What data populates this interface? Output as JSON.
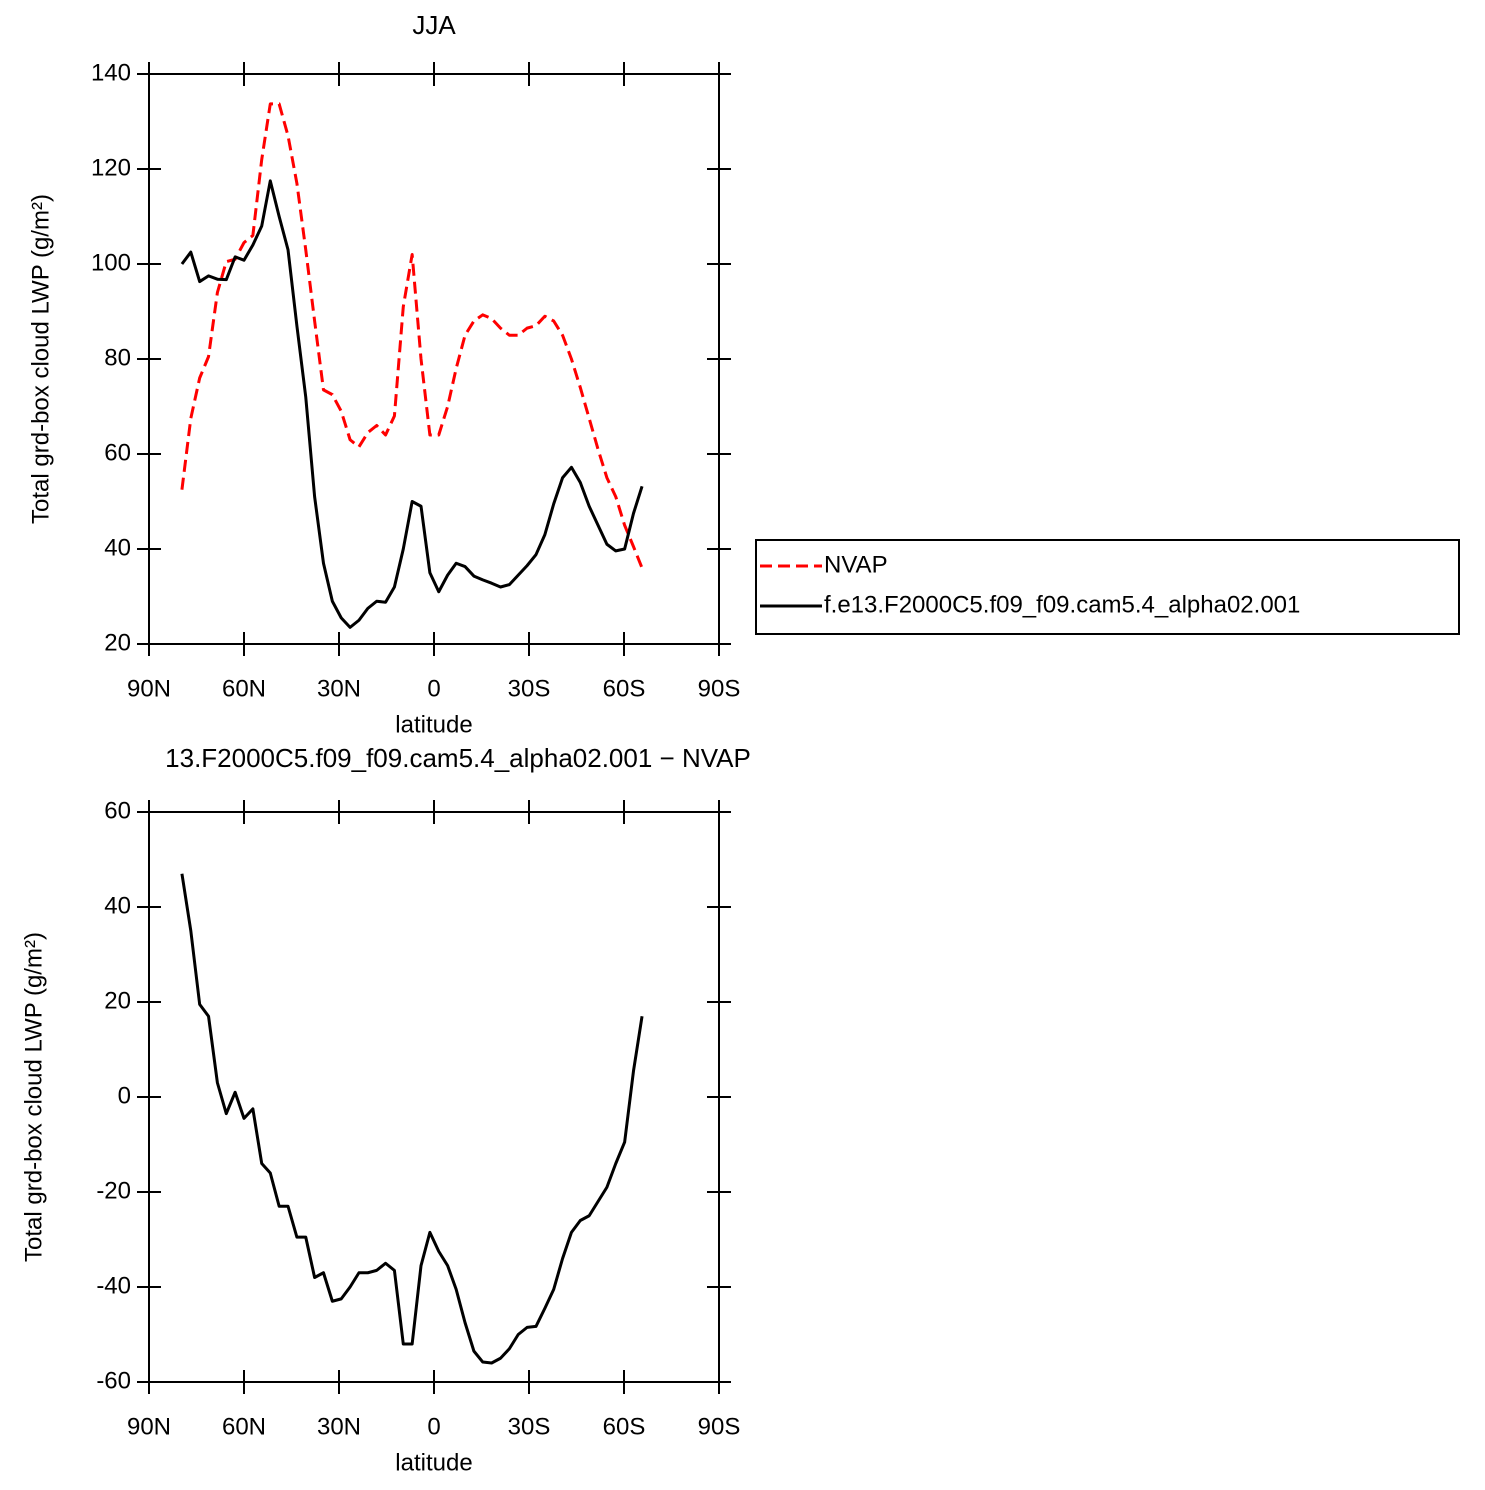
{
  "chart_data": [
    {
      "type": "line",
      "title": "JJA",
      "x_label": "latitude",
      "y_label": "Total grd-box cloud LWP (g/m²)",
      "x": [
        79.6,
        76.8,
        74.0,
        71.2,
        68.4,
        65.6,
        62.8,
        60.0,
        57.2,
        54.4,
        51.7,
        48.9,
        46.1,
        43.3,
        40.5,
        37.7,
        34.9,
        32.1,
        29.3,
        26.5,
        23.7,
        20.9,
        18.1,
        15.3,
        12.5,
        9.7,
        6.9,
        4.1,
        1.3,
        -1.5,
        -4.3,
        -7.0,
        -9.8,
        -12.6,
        -15.4,
        -18.2,
        -21.0,
        -23.8,
        -26.6,
        -29.4,
        -32.2,
        -35.0,
        -37.8,
        -40.6,
        -43.4,
        -46.2,
        -49.0,
        -51.8,
        -54.6,
        -57.4,
        -60.2,
        -63.0,
        -65.7
      ],
      "series": [
        {
          "name": "NVAP",
          "color": "#ff0000",
          "linestyle": "dashed",
          "values": [
            52.5,
            67.5,
            76,
            80.5,
            94,
            100.5,
            101,
            104.5,
            106,
            122,
            133.7,
            133.7,
            127,
            117,
            103,
            88,
            73.5,
            72.5,
            69,
            63,
            61.5,
            64.5,
            66,
            64,
            68,
            91,
            102,
            80,
            64,
            64,
            70,
            78,
            85,
            88,
            89.3,
            88.5,
            86.5,
            85,
            85,
            86.5,
            87,
            89,
            88,
            85,
            80,
            74,
            67.5,
            61,
            55,
            51,
            45,
            40.5,
            36
          ]
        },
        {
          "name": "f.e13.F2000C5.f09_f09.cam5.4_alpha02.001",
          "color": "#000000",
          "linestyle": "solid",
          "values": [
            100,
            102.5,
            96.3,
            97.5,
            96.8,
            96.7,
            101.5,
            100.8,
            104,
            108,
            117.5,
            110,
            103,
            87,
            72,
            51,
            37,
            29,
            25.5,
            23.5,
            25,
            27.5,
            29,
            28.8,
            32,
            40,
            50,
            49,
            35,
            31,
            34.5,
            37,
            36.3,
            34.3,
            33.5,
            32.8,
            32,
            32.5,
            34.5,
            36.5,
            38.8,
            43,
            49.5,
            55,
            57.2,
            54,
            49,
            45,
            41,
            39.6,
            40,
            47.5,
            53.2
          ]
        }
      ],
      "xlim": [
        90,
        -90
      ],
      "xticks": [
        {
          "value": 90,
          "label": "90N"
        },
        {
          "value": 60,
          "label": "60N"
        },
        {
          "value": 30,
          "label": "30N"
        },
        0,
        {
          "value": -30,
          "label": "30S"
        },
        {
          "value": -60,
          "label": "60S"
        },
        {
          "value": -90,
          "label": "90S"
        }
      ],
      "ylim": [
        20,
        140
      ],
      "yticks": [
        20,
        40,
        60,
        80,
        100,
        120,
        140
      ],
      "legend": "right"
    },
    {
      "type": "line",
      "title": "13.F2000C5.f09_f09.cam5.4_alpha02.001 − NVAP",
      "x_label": "latitude",
      "y_label": "Total grd-box cloud LWP (g/m²)",
      "x": [
        79.6,
        76.8,
        74.0,
        71.2,
        68.4,
        65.6,
        62.8,
        60.0,
        57.2,
        54.4,
        51.7,
        48.9,
        46.1,
        43.3,
        40.5,
        37.7,
        34.9,
        32.1,
        29.3,
        26.5,
        23.7,
        20.9,
        18.1,
        15.3,
        12.5,
        9.7,
        6.9,
        4.1,
        1.3,
        -1.5,
        -4.3,
        -7.0,
        -9.8,
        -12.6,
        -15.4,
        -18.2,
        -21.0,
        -23.8,
        -26.6,
        -29.4,
        -32.2,
        -35.0,
        -37.8,
        -40.6,
        -43.4,
        -46.2,
        -49.0,
        -51.8,
        -54.6,
        -57.4,
        -60.2,
        -63.0,
        -65.7
      ],
      "series": [
        {
          "color": "#000000",
          "linestyle": "solid",
          "values": [
            47,
            35,
            19.5,
            17,
            3,
            -3.5,
            1,
            -4.5,
            -2.5,
            -14,
            -16,
            -23,
            -23,
            -29.5,
            -29.5,
            -38,
            -37,
            -43,
            -42.5,
            -40,
            -37,
            -37,
            -36.5,
            -35,
            -36.5,
            -52,
            -52,
            -35.5,
            -28.5,
            -32.5,
            -35.5,
            -40.5,
            -47.5,
            -53.5,
            -55.8,
            -56,
            -55,
            -53,
            -50,
            -48.5,
            -48.3,
            -44.5,
            -40.5,
            -34,
            -28.5,
            -26,
            -25,
            -22,
            -19,
            -14,
            -9.5,
            5.5,
            17
          ]
        }
      ],
      "xlim": [
        90,
        -90
      ],
      "xticks": [
        {
          "value": 90,
          "label": "90N"
        },
        {
          "value": 60,
          "label": "60N"
        },
        {
          "value": 30,
          "label": "30N"
        },
        0,
        {
          "value": -30,
          "label": "30S"
        },
        {
          "value": -60,
          "label": "60S"
        },
        {
          "value": -90,
          "label": "90S"
        }
      ],
      "ylim": [
        -60,
        60
      ],
      "yticks": [
        -60,
        -40,
        -20,
        0,
        20,
        40,
        60
      ]
    }
  ]
}
